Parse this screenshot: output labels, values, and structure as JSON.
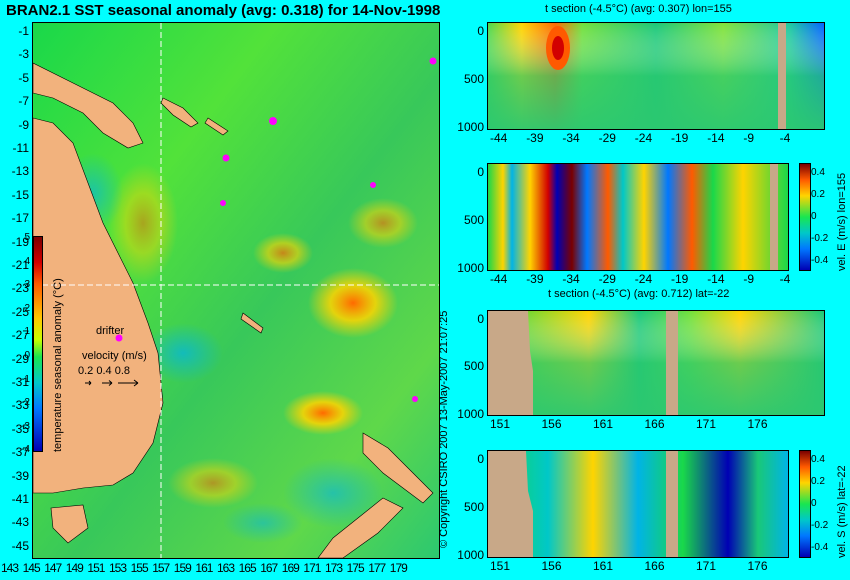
{
  "map": {
    "title": "BRAN2.1 SST seasonal anomaly (avg: 0.318) for 14-Nov-1998",
    "lat_labels": [
      "-1",
      "-3",
      "-5",
      "-7",
      "-9",
      "-11",
      "-13",
      "-15",
      "-17",
      "-19",
      "-21",
      "-23",
      "-25",
      "-27",
      "-29",
      "-31",
      "-33",
      "-35",
      "-37",
      "-39",
      "-41",
      "-43",
      "-45"
    ],
    "lon_labels": [
      "143",
      "145",
      "147",
      "149",
      "151",
      "153",
      "155",
      "157",
      "159",
      "161",
      "163",
      "165",
      "167",
      "169",
      "171",
      "173",
      "175",
      "177",
      "179"
    ],
    "colorbar": {
      "label": "temperature seasonal anomaly (°C)",
      "ticks": [
        "5",
        "4",
        "3",
        "2",
        "1",
        "0",
        "-1",
        "-2",
        "-3",
        "-4"
      ]
    },
    "drifter_label": "drifter",
    "velocity": {
      "label": "velocity (m/s)",
      "scale": "0.2 0.4 0.8"
    },
    "crosshair": {
      "lon": 155,
      "lat": -22
    },
    "colors": {
      "land": "#f2b27d",
      "drifter": "#ff00ff",
      "frame": "#00ffff"
    }
  },
  "side_text": "© Copyright CSIRO 2007   13-May-2007 21:07:25",
  "sections": [
    {
      "title": "t section (-4.5°C) (avg: 0.307) lon=155",
      "y_ticks": [
        "0",
        "500",
        "1000"
      ],
      "x_ticks": [
        "-44",
        "-39",
        "-34",
        "-29",
        "-24",
        "-19",
        "-14",
        "-9",
        "-4"
      ]
    },
    {
      "title": "",
      "y_ticks": [
        "0",
        "500",
        "1000"
      ],
      "x_ticks": [
        "-44",
        "-39",
        "-34",
        "-29",
        "-24",
        "-19",
        "-14",
        "-9",
        "-4"
      ],
      "cbar_label": "vel. E (m/s) lon=155",
      "cbar_ticks": [
        "0.4",
        "0.2",
        "0",
        "-0.2",
        "-0.4"
      ]
    },
    {
      "title": "t section (-4.5°C) (avg: 0.712) lat=-22",
      "y_ticks": [
        "0",
        "500",
        "1000"
      ],
      "x_ticks": [
        "151",
        "156",
        "161",
        "166",
        "171",
        "176"
      ]
    },
    {
      "title": "",
      "y_ticks": [
        "0",
        "500",
        "1000"
      ],
      "x_ticks": [
        "151",
        "156",
        "161",
        "166",
        "171",
        "176"
      ],
      "cbar_label": "vel. S (m/s) lat=-22",
      "cbar_ticks": [
        "0.4",
        "0.2",
        "0",
        "-0.2",
        "-0.4"
      ]
    }
  ]
}
